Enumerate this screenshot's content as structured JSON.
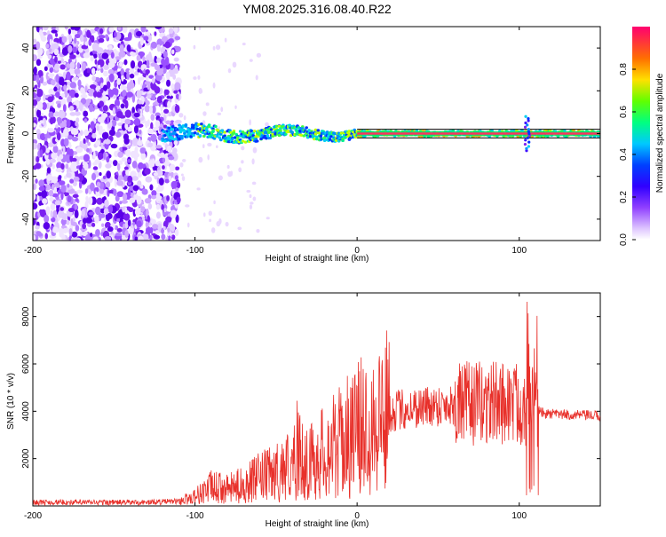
{
  "title": "YM08.2025.316.08.40.R22",
  "chart_data": [
    {
      "type": "heatmap",
      "xlabel": "Height of straight line (km)",
      "ylabel": "Frequency (Hz)",
      "xlim": [
        -200,
        150
      ],
      "ylim": [
        -50,
        50
      ],
      "xticks": [
        -200,
        -100,
        0,
        100
      ],
      "yticks": [
        -40,
        -20,
        0,
        20,
        40
      ],
      "colorbar": {
        "label": "Normalized spectral amplitude",
        "range": [
          0,
          1
        ],
        "ticks": [
          0.0,
          0.2,
          0.4,
          0.6,
          0.8
        ],
        "colors": [
          "#ffffff",
          "#b070ff",
          "#5010ff",
          "#0000ff",
          "#00c8ff",
          "#00ff60",
          "#c8ff00",
          "#ff8000",
          "#ff0060",
          "#ff0080"
        ]
      },
      "description_points": {
        "noise_region_end_km": -110,
        "signal_track_start_km": -120,
        "signal_track_freq_hz": 0
      }
    },
    {
      "type": "line",
      "xlabel": "Height of straight line (km)",
      "ylabel": "SNR (10 * v/v)",
      "xlim": [
        -200,
        150
      ],
      "ylim": [
        0,
        9000
      ],
      "xticks": [
        -200,
        -100,
        0,
        100
      ],
      "yticks": [
        2000,
        4000,
        6000,
        8000
      ],
      "color": "#e8302a",
      "envelope": {
        "x": [
          -200,
          -130,
          -110,
          -100,
          -90,
          -80,
          -70,
          -60,
          -50,
          -45,
          -38,
          -30,
          -20,
          -10,
          0,
          10,
          20,
          30,
          40,
          60,
          80,
          95,
          100,
          105,
          110,
          115,
          130,
          150
        ],
        "y": [
          150,
          150,
          200,
          400,
          800,
          700,
          900,
          1200,
          1400,
          1600,
          2000,
          1800,
          2300,
          2700,
          3200,
          3700,
          4000,
          4100,
          4200,
          4300,
          4350,
          4400,
          4300,
          4300,
          4100,
          3900,
          3850,
          3800
        ]
      }
    }
  ]
}
